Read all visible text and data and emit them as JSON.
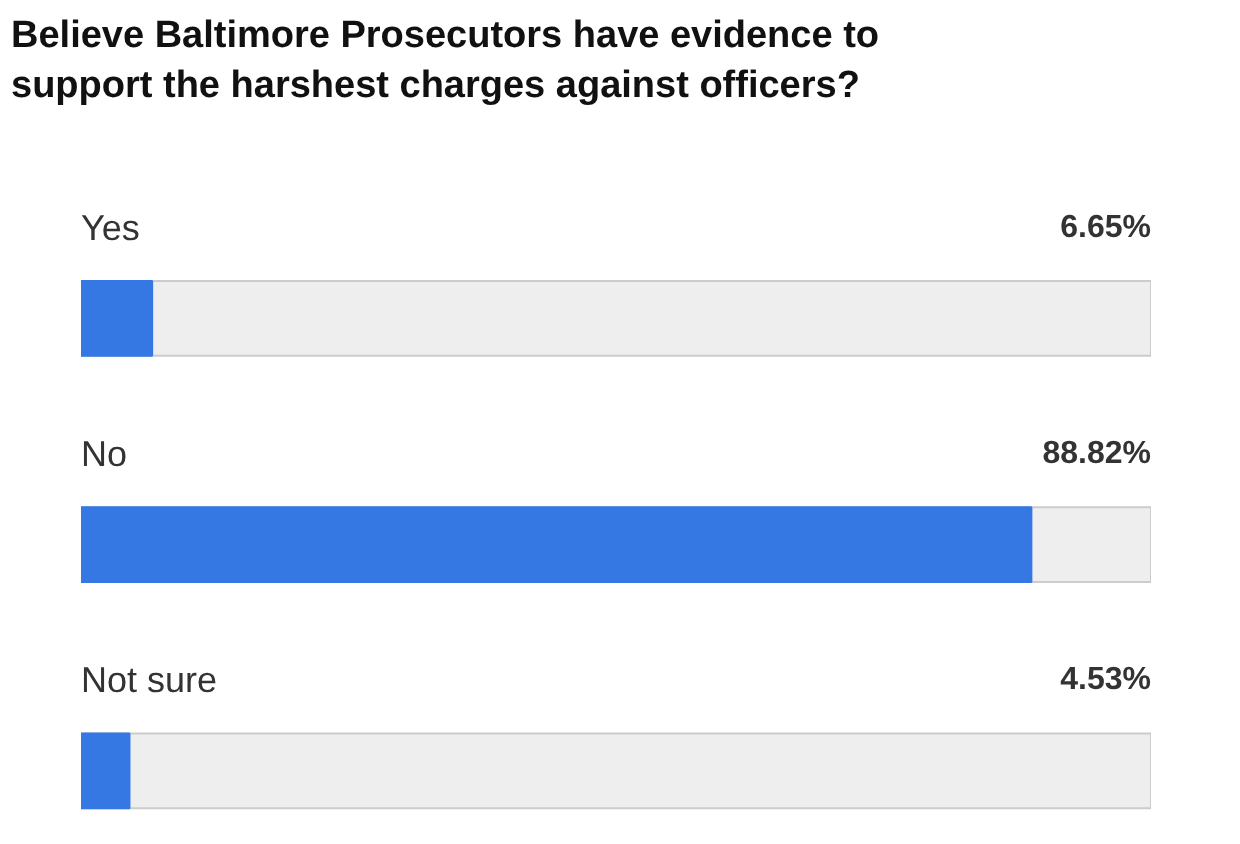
{
  "chart_data": {
    "type": "bar",
    "orientation": "horizontal",
    "title": "Believe Baltimore Prosecutors have evidence to support the harshest charges against officers?",
    "categories": [
      "Yes",
      "No",
      "Not sure"
    ],
    "values": [
      6.65,
      88.82,
      4.53
    ],
    "value_labels": [
      "6.65%",
      "88.82%",
      "4.53%"
    ],
    "color": "#3577e3",
    "xlim": [
      0,
      100
    ],
    "tick_labels": false,
    "grid": false
  }
}
